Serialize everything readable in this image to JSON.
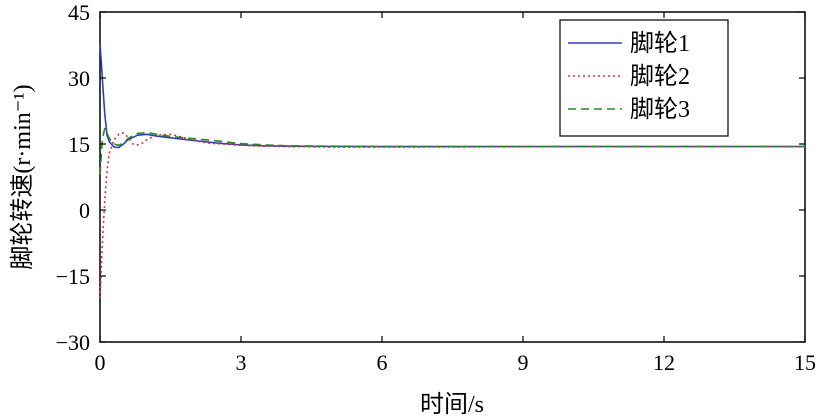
{
  "chart_data": {
    "type": "line",
    "xlabel": "时间/s",
    "ylabel": "脚轮转速(r·min⁻¹)",
    "xlim": [
      0,
      15
    ],
    "ylim": [
      -30,
      45
    ],
    "xticks": [
      0,
      3,
      6,
      9,
      12,
      15
    ],
    "yticks": [
      -30,
      -15,
      0,
      15,
      30,
      45
    ],
    "xtick_labels": [
      "0",
      "3",
      "6",
      "9",
      "12",
      "15"
    ],
    "ytick_labels": [
      "−30",
      "−15",
      "0",
      "15",
      "30",
      "45"
    ],
    "grid": false,
    "legend_position": "top-right",
    "series": [
      {
        "name": "脚轮1",
        "color": "#2b3fbf",
        "style": "solid",
        "x": [
          0,
          0.05,
          0.1,
          0.15,
          0.2,
          0.3,
          0.4,
          0.5,
          0.6,
          0.8,
          1.0,
          1.2,
          1.5,
          2.0,
          2.5,
          3.0,
          3.5,
          4.0,
          5.0,
          6.0,
          8.0,
          10.0,
          12.0,
          15.0
        ],
        "y": [
          38,
          30,
          22,
          17,
          15.5,
          14.3,
          14.2,
          15,
          16,
          17,
          17.2,
          16.8,
          16.4,
          15.8,
          15.2,
          14.8,
          14.6,
          14.5,
          14.45,
          14.4,
          14.4,
          14.4,
          14.4,
          14.4
        ]
      },
      {
        "name": "脚轮2",
        "color": "#e03030",
        "style": "dotted",
        "x": [
          0,
          0.05,
          0.1,
          0.15,
          0.2,
          0.3,
          0.4,
          0.5,
          0.6,
          0.7,
          0.8,
          0.9,
          1.0,
          1.2,
          1.5,
          1.8,
          2.0,
          2.3,
          2.6,
          3.0,
          3.5,
          4.0,
          5.0,
          6.0,
          8.0,
          10.0,
          12.0,
          15.0
        ],
        "y": [
          -20,
          -8,
          2,
          9,
          13,
          16,
          17.2,
          17.5,
          16.5,
          15,
          14.8,
          15.2,
          16,
          17,
          17.2,
          16.4,
          15.8,
          15.2,
          15,
          14.7,
          14.5,
          14.4,
          14.3,
          14.3,
          14.35,
          14.4,
          14.4,
          14.4
        ]
      },
      {
        "name": "脚轮3",
        "color": "#2a8a2a",
        "style": "dashed",
        "x": [
          0,
          0.05,
          0.1,
          0.15,
          0.2,
          0.3,
          0.4,
          0.5,
          0.6,
          0.8,
          1.0,
          1.2,
          1.5,
          2.0,
          2.5,
          3.0,
          3.5,
          4.0,
          5.0,
          6.0,
          8.0,
          10.0,
          12.0,
          15.0
        ],
        "y": [
          8,
          16,
          18.5,
          17.5,
          16.2,
          15,
          14.7,
          15.3,
          16.3,
          17.4,
          17.6,
          17.2,
          16.7,
          16.2,
          15.7,
          15.1,
          14.8,
          14.6,
          14.5,
          14.45,
          14.4,
          14.4,
          14.4,
          14.4
        ]
      }
    ]
  }
}
